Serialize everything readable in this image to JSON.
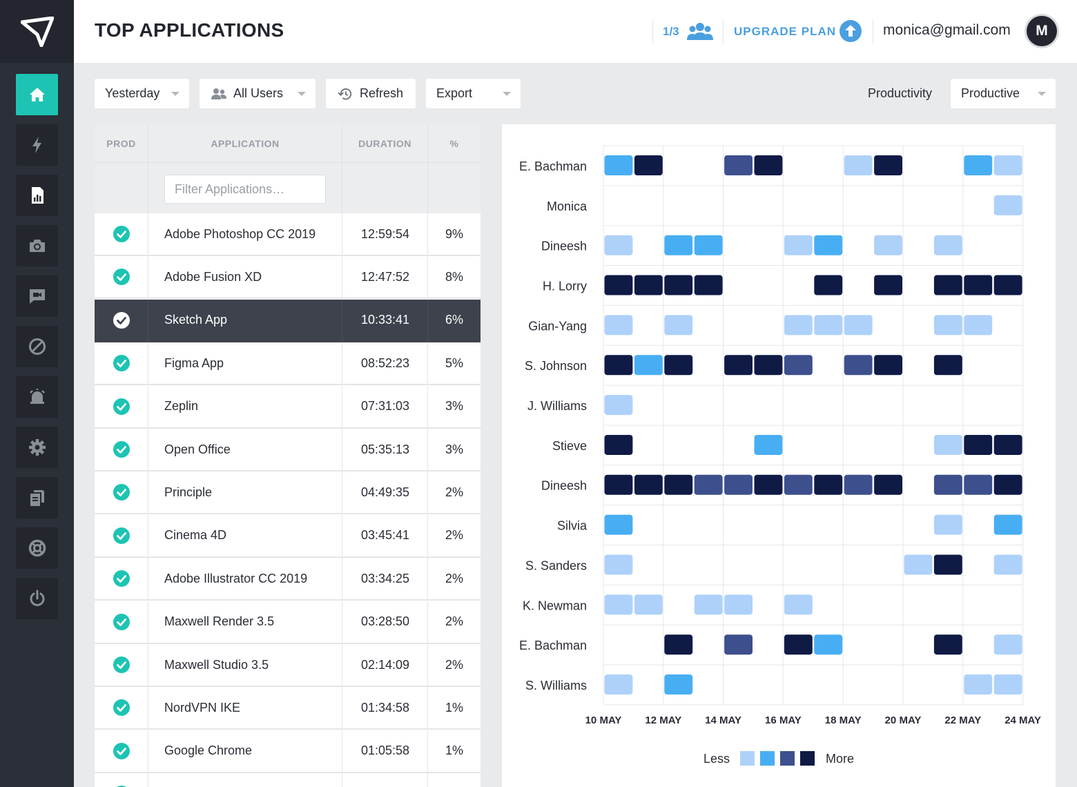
{
  "header": {
    "title": "TOP APPLICATIONS",
    "seat_count": "1/3",
    "upgrade_label": "UPGRADE PLAN",
    "user_email": "monica@gmail.com",
    "avatar_initial": "M"
  },
  "sidebar": {
    "items": [
      {
        "name": "home-icon",
        "active": true
      },
      {
        "name": "lightning-icon",
        "active": false
      },
      {
        "name": "report-icon",
        "active": false
      },
      {
        "name": "camera-icon",
        "active": false
      },
      {
        "name": "video-chat-icon",
        "active": false
      },
      {
        "name": "block-icon",
        "active": false
      },
      {
        "name": "alarm-icon",
        "active": false
      },
      {
        "name": "gear-icon",
        "active": false
      },
      {
        "name": "copy-icon",
        "active": false
      },
      {
        "name": "lifebuoy-icon",
        "active": false
      },
      {
        "name": "power-icon",
        "active": false
      }
    ]
  },
  "toolbar": {
    "date_filter": "Yesterday",
    "user_filter": "All Users",
    "refresh_label": "Refresh",
    "export_label": "Export",
    "productivity_label": "Productivity",
    "productivity_value": "Productive"
  },
  "table": {
    "columns": [
      "PROD",
      "APPLICATION",
      "DURATION",
      "%"
    ],
    "filter_placeholder": "Filter Applications…",
    "rows": [
      {
        "app": "Adobe Photoshop CC 2019",
        "duration": "12:59:54",
        "pct": "9%"
      },
      {
        "app": "Adobe Fusion XD",
        "duration": "12:47:52",
        "pct": "8%"
      },
      {
        "app": "Sketch App",
        "duration": "10:33:41",
        "pct": "6%",
        "selected": true
      },
      {
        "app": "Figma App",
        "duration": "08:52:23",
        "pct": "5%"
      },
      {
        "app": "Zeplin",
        "duration": "07:31:03",
        "pct": "3%"
      },
      {
        "app": "Open Office",
        "duration": "05:35:13",
        "pct": "3%"
      },
      {
        "app": "Principle",
        "duration": "04:49:35",
        "pct": "2%"
      },
      {
        "app": "Cinema 4D",
        "duration": "03:45:41",
        "pct": "2%"
      },
      {
        "app": "Adobe Illustrator CC 2019",
        "duration": "03:34:25",
        "pct": "2%"
      },
      {
        "app": "Maxwell Render 3.5",
        "duration": "03:28:50",
        "pct": "2%"
      },
      {
        "app": "Maxwell Studio 3.5",
        "duration": "02:14:09",
        "pct": "2%"
      },
      {
        "app": "NordVPN IKE",
        "duration": "01:34:58",
        "pct": "1%"
      },
      {
        "app": "Google Chrome",
        "duration": "01:05:58",
        "pct": "1%"
      },
      {
        "app": "",
        "duration": "",
        "pct": ""
      }
    ]
  },
  "chart_data": {
    "type": "heatmap",
    "x_labels": [
      "10 MAY",
      "12 MAY",
      "14 MAY",
      "16 MAY",
      "18 MAY",
      "20 MAY",
      "22 MAY",
      "24 MAY"
    ],
    "level_colors": [
      "#aed1fa",
      "#48aef3",
      "#3d4f8d",
      "#0f1a45"
    ],
    "legend": {
      "less": "Less",
      "more": "More"
    },
    "rows": [
      {
        "name": "E. Bachman",
        "values": [
          2,
          4,
          0,
          0,
          3,
          4,
          0,
          0,
          1,
          4,
          0,
          0,
          2,
          1
        ]
      },
      {
        "name": "Monica",
        "values": [
          0,
          0,
          0,
          0,
          0,
          0,
          0,
          0,
          0,
          0,
          0,
          0,
          0,
          1
        ]
      },
      {
        "name": "Dineesh",
        "values": [
          1,
          0,
          2,
          2,
          0,
          0,
          1,
          2,
          0,
          1,
          0,
          1,
          0,
          0
        ]
      },
      {
        "name": "H. Lorry",
        "values": [
          4,
          4,
          4,
          4,
          0,
          0,
          0,
          4,
          0,
          4,
          0,
          4,
          4,
          4
        ]
      },
      {
        "name": "Gian-Yang",
        "values": [
          1,
          0,
          1,
          0,
          0,
          0,
          1,
          1,
          1,
          0,
          0,
          1,
          1,
          0
        ]
      },
      {
        "name": "S. Johnson",
        "values": [
          4,
          2,
          4,
          0,
          4,
          4,
          3,
          0,
          3,
          4,
          0,
          4,
          0,
          0
        ]
      },
      {
        "name": "J. Williams",
        "values": [
          1,
          0,
          0,
          0,
          0,
          0,
          0,
          0,
          0,
          0,
          0,
          0,
          0,
          0
        ]
      },
      {
        "name": "Stieve",
        "values": [
          4,
          0,
          0,
          0,
          0,
          2,
          0,
          0,
          0,
          0,
          0,
          1,
          4,
          4
        ]
      },
      {
        "name": "Dineesh",
        "values": [
          4,
          4,
          4,
          3,
          3,
          4,
          3,
          4,
          3,
          4,
          0,
          3,
          3,
          4
        ]
      },
      {
        "name": "Silvia",
        "values": [
          2,
          0,
          0,
          0,
          0,
          0,
          0,
          0,
          0,
          0,
          0,
          1,
          0,
          2
        ]
      },
      {
        "name": "S. Sanders",
        "values": [
          1,
          0,
          0,
          0,
          0,
          0,
          0,
          0,
          0,
          0,
          1,
          4,
          0,
          1
        ]
      },
      {
        "name": "K. Newman",
        "values": [
          1,
          1,
          0,
          1,
          1,
          0,
          1,
          0,
          0,
          0,
          0,
          0,
          0,
          0
        ]
      },
      {
        "name": "E. Bachman",
        "values": [
          0,
          0,
          4,
          0,
          3,
          0,
          4,
          2,
          0,
          0,
          0,
          4,
          0,
          1
        ]
      },
      {
        "name": "S. Williams",
        "values": [
          1,
          0,
          2,
          0,
          0,
          0,
          0,
          0,
          0,
          0,
          0,
          0,
          1,
          1
        ]
      }
    ]
  }
}
